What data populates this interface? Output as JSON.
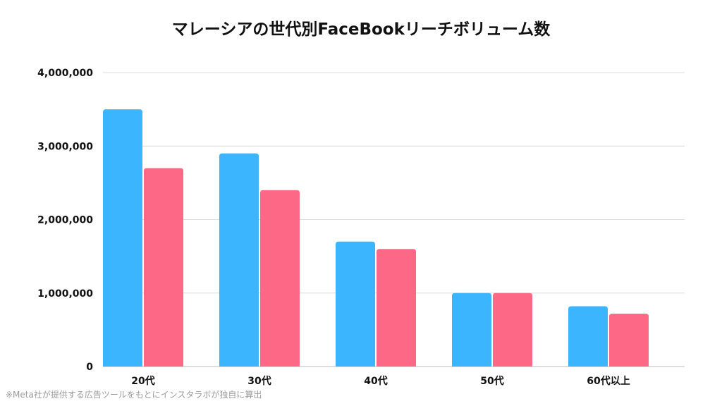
{
  "chart_data": {
    "type": "bar",
    "title": "マレーシアの世代別FaceBookリーチボリューム数",
    "categories": [
      "20代",
      "30代",
      "40代",
      "50代",
      "60代以上"
    ],
    "series": [
      {
        "values": [
          3500000,
          2900000,
          1700000,
          1000000,
          820000
        ]
      },
      {
        "values": [
          2700000,
          2400000,
          1600000,
          1000000,
          720000
        ]
      }
    ],
    "y_ticks": [
      "0",
      "1,000,000",
      "2,000,000",
      "3,000,000",
      "4,000,000"
    ],
    "ylim": [
      0,
      4000000
    ],
    "grid": true,
    "legend": "none",
    "colors": {
      "series_1": "#3bb5fd",
      "series_2": "#fd6887",
      "grid": "#dcdcdc"
    }
  },
  "footnote": "※Meta社が提供する広告ツールをもとにインスタラボが独自に算出"
}
